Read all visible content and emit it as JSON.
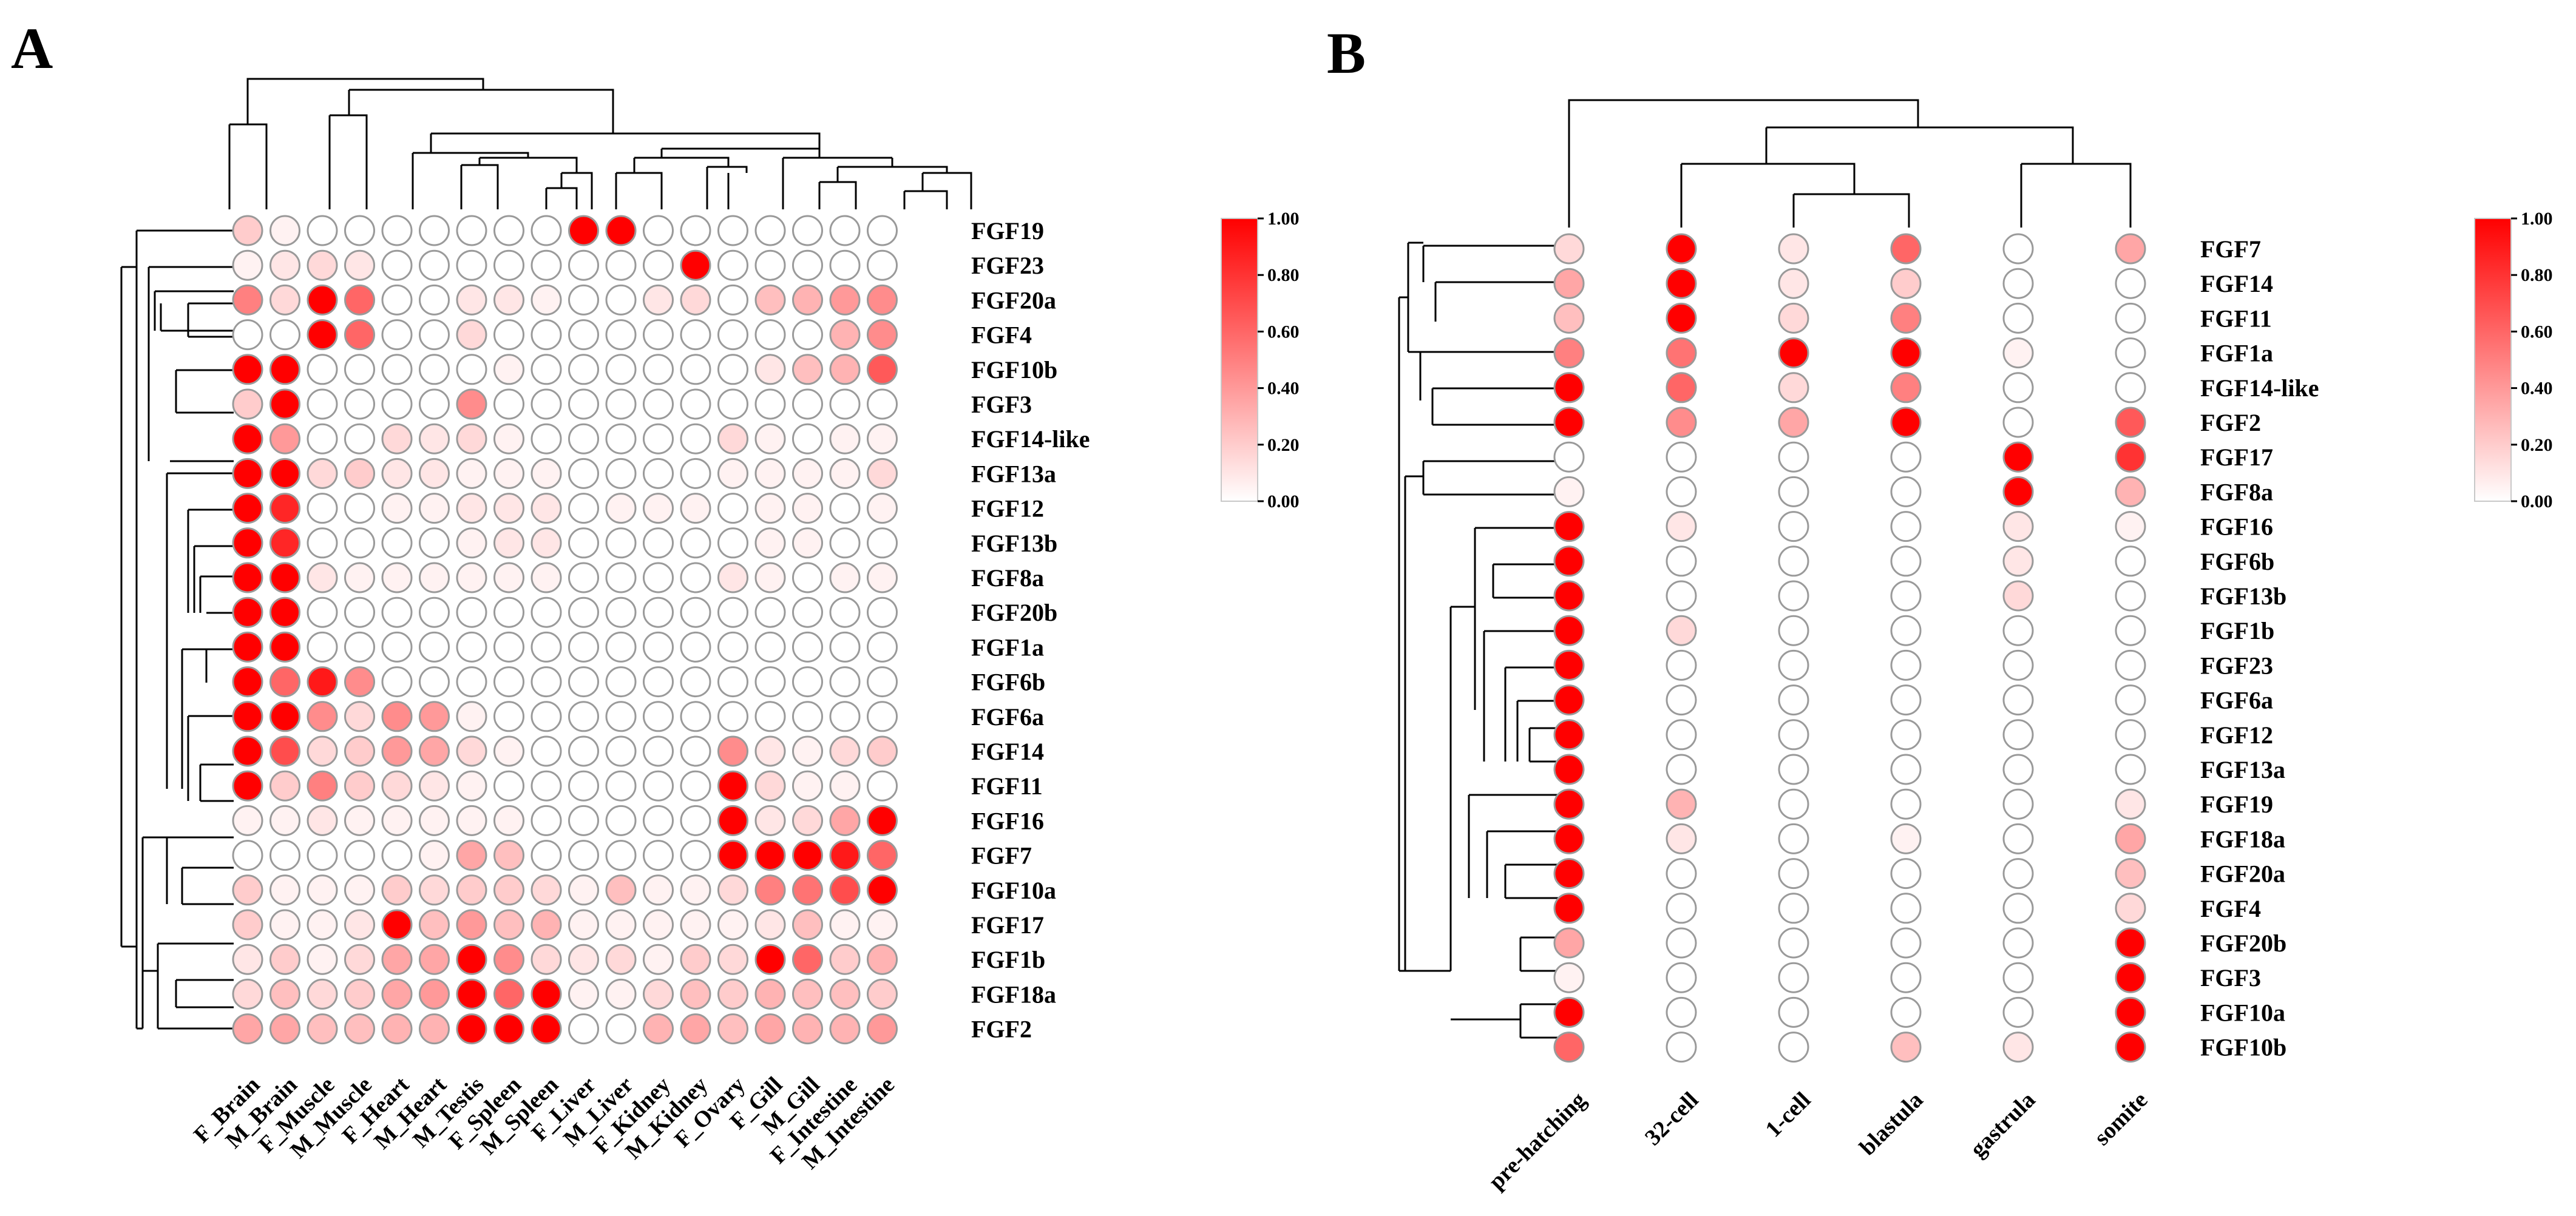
{
  "chart_data": [
    {
      "panel": "A",
      "type": "heatmap",
      "marker": "circle",
      "columns": [
        "F_Brain",
        "M_Brain",
        "F_Muscle",
        "M_Muscle",
        "F_Heart",
        "M_Heart",
        "M_Testis",
        "F_Spleen",
        "M_Spleen",
        "F_Liver",
        "M_Liver",
        "F_Kidney",
        "M_Kidney",
        "F_Ovary",
        "F_Gill",
        "M_Gill",
        "F_Intestine",
        "M_Intestine"
      ],
      "rows": [
        "FGF19",
        "FGF23",
        "FGF20a",
        "FGF4",
        "FGF10b",
        "FGF3",
        "FGF14-like",
        "FGF13a",
        "FGF12",
        "FGF13b",
        "FGF8a",
        "FGF20b",
        "FGF1a",
        "FGF6b",
        "FGF6a",
        "FGF14",
        "FGF11",
        "FGF16",
        "FGF7",
        "FGF10a",
        "FGF17",
        "FGF1b",
        "FGF18a",
        "FGF2"
      ],
      "values": [
        [
          0.2,
          0.05,
          0.0,
          0.0,
          0.0,
          0.0,
          0.0,
          0.0,
          0.0,
          1.0,
          1.0,
          0.0,
          0.0,
          0.0,
          0.0,
          0.0,
          0.0,
          0.0
        ],
        [
          0.05,
          0.1,
          0.15,
          0.1,
          0.0,
          0.0,
          0.0,
          0.0,
          0.0,
          0.0,
          0.0,
          0.0,
          1.0,
          0.0,
          0.0,
          0.0,
          0.0,
          0.0
        ],
        [
          0.5,
          0.15,
          1.0,
          0.6,
          0.0,
          0.0,
          0.1,
          0.1,
          0.05,
          0.0,
          0.0,
          0.1,
          0.15,
          0.0,
          0.25,
          0.3,
          0.4,
          0.45
        ],
        [
          0.0,
          0.0,
          1.0,
          0.6,
          0.0,
          0.0,
          0.15,
          0.0,
          0.0,
          0.0,
          0.0,
          0.0,
          0.0,
          0.0,
          0.0,
          0.0,
          0.3,
          0.45
        ],
        [
          1.0,
          1.0,
          0.0,
          0.0,
          0.0,
          0.0,
          0.0,
          0.05,
          0.0,
          0.0,
          0.0,
          0.0,
          0.0,
          0.0,
          0.1,
          0.25,
          0.3,
          0.65
        ],
        [
          0.2,
          1.0,
          0.0,
          0.0,
          0.0,
          0.0,
          0.45,
          0.0,
          0.0,
          0.0,
          0.0,
          0.0,
          0.0,
          0.0,
          0.0,
          0.0,
          0.0,
          0.0
        ],
        [
          1.0,
          0.4,
          0.0,
          0.0,
          0.15,
          0.1,
          0.15,
          0.05,
          0.0,
          0.0,
          0.0,
          0.0,
          0.0,
          0.15,
          0.05,
          0.0,
          0.05,
          0.05
        ],
        [
          1.0,
          1.0,
          0.15,
          0.2,
          0.1,
          0.1,
          0.05,
          0.05,
          0.05,
          0.0,
          0.0,
          0.0,
          0.0,
          0.05,
          0.05,
          0.05,
          0.05,
          0.15
        ],
        [
          1.0,
          0.85,
          0.0,
          0.0,
          0.05,
          0.05,
          0.1,
          0.1,
          0.1,
          0.0,
          0.05,
          0.05,
          0.05,
          0.0,
          0.05,
          0.05,
          0.0,
          0.05
        ],
        [
          1.0,
          0.85,
          0.0,
          0.0,
          0.0,
          0.0,
          0.05,
          0.1,
          0.1,
          0.0,
          0.0,
          0.0,
          0.0,
          0.0,
          0.05,
          0.05,
          0.0,
          0.0
        ],
        [
          1.0,
          1.0,
          0.1,
          0.05,
          0.05,
          0.05,
          0.05,
          0.05,
          0.05,
          0.0,
          0.0,
          0.0,
          0.0,
          0.1,
          0.05,
          0.0,
          0.05,
          0.05
        ],
        [
          1.0,
          1.0,
          0.0,
          0.0,
          0.0,
          0.0,
          0.0,
          0.0,
          0.0,
          0.0,
          0.0,
          0.0,
          0.0,
          0.0,
          0.0,
          0.0,
          0.0,
          0.0
        ],
        [
          1.0,
          1.0,
          0.0,
          0.0,
          0.0,
          0.0,
          0.0,
          0.0,
          0.0,
          0.0,
          0.0,
          0.0,
          0.0,
          0.0,
          0.0,
          0.0,
          0.0,
          0.0
        ],
        [
          1.0,
          0.6,
          0.9,
          0.45,
          0.0,
          0.0,
          0.0,
          0.0,
          0.0,
          0.0,
          0.0,
          0.0,
          0.0,
          0.0,
          0.0,
          0.0,
          0.0,
          0.0
        ],
        [
          1.0,
          1.0,
          0.45,
          0.15,
          0.45,
          0.4,
          0.05,
          0.0,
          0.0,
          0.0,
          0.0,
          0.0,
          0.0,
          0.0,
          0.0,
          0.0,
          0.0,
          0.0
        ],
        [
          1.0,
          0.7,
          0.15,
          0.2,
          0.4,
          0.35,
          0.15,
          0.05,
          0.0,
          0.0,
          0.0,
          0.0,
          0.0,
          0.45,
          0.1,
          0.05,
          0.15,
          0.2
        ],
        [
          1.0,
          0.2,
          0.5,
          0.2,
          0.15,
          0.1,
          0.05,
          0.0,
          0.0,
          0.0,
          0.0,
          0.0,
          0.0,
          1.0,
          0.15,
          0.05,
          0.05,
          0.0
        ],
        [
          0.05,
          0.05,
          0.1,
          0.05,
          0.05,
          0.05,
          0.05,
          0.05,
          0.0,
          0.0,
          0.0,
          0.0,
          0.0,
          1.0,
          0.1,
          0.15,
          0.35,
          1.0
        ],
        [
          0.0,
          0.0,
          0.0,
          0.0,
          0.0,
          0.05,
          0.35,
          0.25,
          0.0,
          0.0,
          0.0,
          0.0,
          0.0,
          1.0,
          1.0,
          1.0,
          0.9,
          0.6
        ],
        [
          0.2,
          0.05,
          0.05,
          0.05,
          0.2,
          0.15,
          0.2,
          0.2,
          0.15,
          0.05,
          0.25,
          0.05,
          0.05,
          0.15,
          0.5,
          0.55,
          0.7,
          1.0
        ],
        [
          0.2,
          0.05,
          0.05,
          0.1,
          1.0,
          0.25,
          0.4,
          0.25,
          0.3,
          0.05,
          0.05,
          0.05,
          0.05,
          0.05,
          0.1,
          0.25,
          0.05,
          0.05
        ],
        [
          0.1,
          0.2,
          0.05,
          0.15,
          0.35,
          0.35,
          1.0,
          0.45,
          0.15,
          0.1,
          0.15,
          0.05,
          0.2,
          0.15,
          1.0,
          0.6,
          0.2,
          0.3
        ],
        [
          0.15,
          0.25,
          0.15,
          0.2,
          0.35,
          0.4,
          1.0,
          0.6,
          1.0,
          0.05,
          0.05,
          0.15,
          0.25,
          0.2,
          0.3,
          0.25,
          0.25,
          0.2
        ],
        [
          0.35,
          0.35,
          0.25,
          0.25,
          0.3,
          0.3,
          1.0,
          1.0,
          1.0,
          0.0,
          0.0,
          0.3,
          0.35,
          0.25,
          0.35,
          0.3,
          0.3,
          0.4
        ]
      ],
      "colorbar": {
        "min": 0.0,
        "max": 1.0,
        "ticks": [
          "1.00",
          "0.80",
          "0.60",
          "0.40",
          "0.20",
          "0.00"
        ],
        "low_color": "#ffffff",
        "high_color": "#ff0000"
      }
    },
    {
      "panel": "B",
      "type": "heatmap",
      "marker": "circle",
      "columns": [
        "pre-hatching",
        "32-cell",
        "1-cell",
        "blastula",
        "gastrula",
        "somite"
      ],
      "rows": [
        "FGF7",
        "FGF14",
        "FGF11",
        "FGF1a",
        "FGF14-like",
        "FGF2",
        "FGF17",
        "FGF8a",
        "FGF16",
        "FGF6b",
        "FGF13b",
        "FGF1b",
        "FGF23",
        "FGF6a",
        "FGF12",
        "FGF13a",
        "FGF19",
        "FGF18a",
        "FGF20a",
        "FGF4",
        "FGF20b",
        "FGF3",
        "FGF10a",
        "FGF10b"
      ],
      "values": [
        [
          0.15,
          1.0,
          0.1,
          0.6,
          0.0,
          0.35
        ],
        [
          0.35,
          1.0,
          0.1,
          0.2,
          0.0,
          0.0
        ],
        [
          0.25,
          1.0,
          0.15,
          0.5,
          0.0,
          0.0
        ],
        [
          0.5,
          0.55,
          1.0,
          1.0,
          0.05,
          0.0
        ],
        [
          1.0,
          0.6,
          0.15,
          0.5,
          0.0,
          0.0
        ],
        [
          1.0,
          0.45,
          0.35,
          1.0,
          0.0,
          0.65
        ],
        [
          0.0,
          0.0,
          0.0,
          0.0,
          1.0,
          0.8
        ],
        [
          0.05,
          0.0,
          0.0,
          0.0,
          1.0,
          0.3
        ],
        [
          1.0,
          0.1,
          0.0,
          0.0,
          0.1,
          0.05
        ],
        [
          1.0,
          0.0,
          0.0,
          0.0,
          0.1,
          0.0
        ],
        [
          1.0,
          0.0,
          0.0,
          0.0,
          0.15,
          0.0
        ],
        [
          1.0,
          0.15,
          0.0,
          0.0,
          0.0,
          0.0
        ],
        [
          1.0,
          0.0,
          0.0,
          0.0,
          0.0,
          0.0
        ],
        [
          1.0,
          0.0,
          0.0,
          0.0,
          0.0,
          0.0
        ],
        [
          1.0,
          0.0,
          0.0,
          0.0,
          0.0,
          0.0
        ],
        [
          1.0,
          0.0,
          0.0,
          0.0,
          0.0,
          0.0
        ],
        [
          1.0,
          0.3,
          0.0,
          0.0,
          0.0,
          0.1
        ],
        [
          1.0,
          0.1,
          0.0,
          0.05,
          0.0,
          0.35
        ],
        [
          1.0,
          0.0,
          0.0,
          0.0,
          0.0,
          0.25
        ],
        [
          1.0,
          0.0,
          0.0,
          0.0,
          0.0,
          0.15
        ],
        [
          0.35,
          0.0,
          0.0,
          0.0,
          0.0,
          1.0
        ],
        [
          0.05,
          0.0,
          0.0,
          0.0,
          0.0,
          1.0
        ],
        [
          1.0,
          0.0,
          0.0,
          0.0,
          0.0,
          1.0
        ],
        [
          0.6,
          0.0,
          0.0,
          0.25,
          0.1,
          1.0
        ]
      ],
      "colorbar": {
        "min": 0.0,
        "max": 1.0,
        "ticks": [
          "1.00",
          "0.80",
          "0.60",
          "0.40",
          "0.20",
          "0.00"
        ],
        "low_color": "#ffffff",
        "high_color": "#ff0000"
      }
    }
  ],
  "panel_labels": {
    "A": "A",
    "B": "B"
  }
}
